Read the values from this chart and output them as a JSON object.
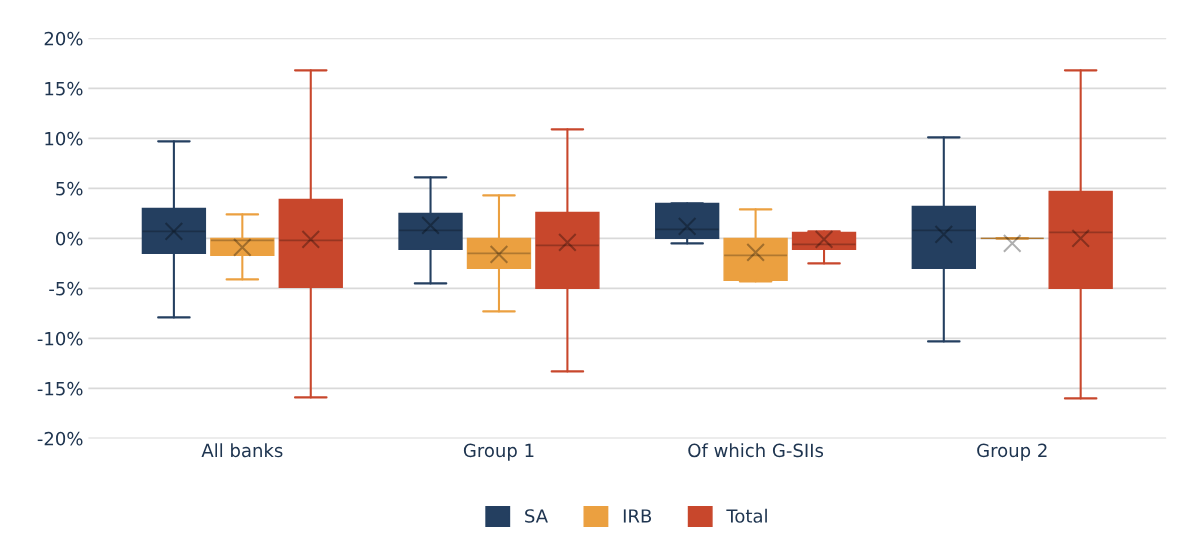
{
  "chart_data": {
    "type": "box",
    "categories": [
      "All banks",
      "Group 1",
      "Of which G-SIIs",
      "Group 2"
    ],
    "series": [
      {
        "name": "SA",
        "color": "#243f60",
        "boxes": [
          {
            "low": -7.9,
            "q1": -1.5,
            "median": 0.7,
            "q3": 3.0,
            "high": 9.7,
            "mean": 0.7
          },
          {
            "low": -4.5,
            "q1": -1.1,
            "median": 0.8,
            "q3": 2.5,
            "high": 6.1,
            "mean": 1.3
          },
          {
            "low": -0.5,
            "q1": 0.0,
            "median": 0.9,
            "q3": 3.5,
            "high": 3.5,
            "mean": 1.2
          },
          {
            "low": -10.3,
            "q1": -3.0,
            "median": 0.8,
            "q3": 3.2,
            "high": 10.1,
            "mean": 0.4
          }
        ]
      },
      {
        "name": "IRB",
        "color": "#eba040",
        "boxes": [
          {
            "low": -4.1,
            "q1": -1.7,
            "median": -0.2,
            "q3": 0.0,
            "high": 2.4,
            "mean": -0.9
          },
          {
            "low": -7.3,
            "q1": -3.0,
            "median": -1.5,
            "q3": 0.0,
            "high": 4.3,
            "mean": -1.6
          },
          {
            "low": -4.3,
            "q1": -4.2,
            "median": -1.7,
            "q3": 0.0,
            "high": 2.9,
            "mean": -1.4
          },
          {
            "low": 0.0,
            "q1": 0.0,
            "median": 0.0,
            "q3": 0.0,
            "high": 0.0,
            "mean": -0.5
          }
        ]
      },
      {
        "name": "Total",
        "color": "#c8472c",
        "boxes": [
          {
            "low": -15.9,
            "q1": -4.9,
            "median": -0.2,
            "q3": 3.9,
            "high": 16.8,
            "mean": -0.1
          },
          {
            "low": -13.3,
            "q1": -5.0,
            "median": -0.7,
            "q3": 2.6,
            "high": 10.9,
            "mean": -0.4
          },
          {
            "low": -2.5,
            "q1": -1.1,
            "median": -0.6,
            "q3": 0.6,
            "high": 0.7,
            "mean": -0.1
          },
          {
            "low": -16.0,
            "q1": -5.0,
            "median": 0.6,
            "q3": 4.7,
            "high": 16.8,
            "mean": 0.0
          }
        ]
      }
    ],
    "ylim": [
      -20,
      20
    ],
    "yticks": [
      {
        "value": -20,
        "label": "-20%"
      },
      {
        "value": -15,
        "label": "-15%"
      },
      {
        "value": -10,
        "label": "-10%"
      },
      {
        "value": -5,
        "label": "-5%"
      },
      {
        "value": 0,
        "label": "0%"
      },
      {
        "value": 5,
        "label": "5%"
      },
      {
        "value": 10,
        "label": "10%"
      },
      {
        "value": 15,
        "label": "15%"
      },
      {
        "value": 20,
        "label": "20%"
      }
    ],
    "grid": "y",
    "legend": "bottom"
  }
}
